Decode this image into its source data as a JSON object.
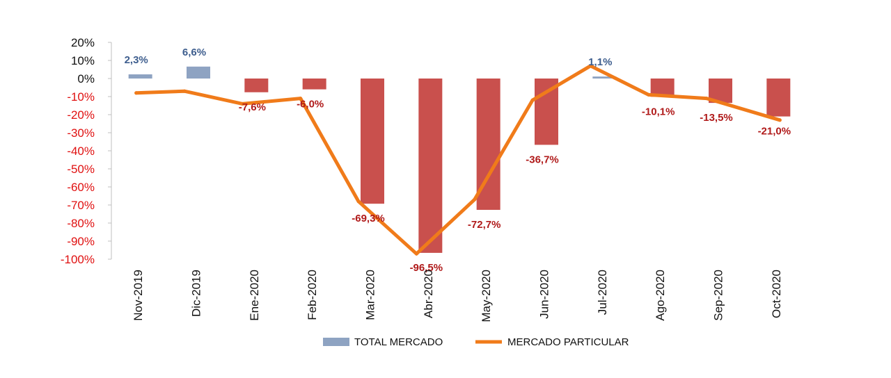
{
  "chart_data": {
    "type": "bar",
    "title": "",
    "xlabel": "",
    "ylabel": "",
    "ylim": [
      -100,
      20
    ],
    "y_ticks": [
      "20%",
      "10%",
      "0%",
      "-10%",
      "-20%",
      "-30%",
      "-40%",
      "-50%",
      "-60%",
      "-70%",
      "-80%",
      "-90%",
      "-100%"
    ],
    "categories": [
      "Nov-2019",
      "Dic-2019",
      "Ene-2020",
      "Feb-2020",
      "Mar-2020",
      "Abr-2020",
      "May-2020",
      "Jun-2020",
      "Jul-2020",
      "Ago-2020",
      "Sep-2020",
      "Oct-2020"
    ],
    "series": [
      {
        "name": "TOTAL MERCADO",
        "type": "bar",
        "values": [
          2.3,
          6.6,
          -7.6,
          -6.0,
          -69.3,
          -96.5,
          -72.7,
          -36.7,
          1.1,
          -10.1,
          -13.5,
          -21.0
        ],
        "labels": [
          "2,3%",
          "6,6%",
          "-7,6%",
          "-6,0%",
          "-69,3%",
          "-96,5%",
          "-72,7%",
          "-36,7%",
          "1,1%",
          "-10,1%",
          "-13,5%",
          "-21,0%"
        ]
      },
      {
        "name": "MERCADO PARTICULAR",
        "type": "line",
        "values": [
          -8,
          -7,
          -14,
          -11,
          -68,
          -97,
          -67,
          -12,
          7,
          -9,
          -11,
          -23
        ]
      }
    ],
    "legend_position": "bottom",
    "colors": {
      "bar_positive": "#8ea3c2",
      "bar_negative": "#c9504d",
      "line": "#f07b1a",
      "label_positive": "#3e5e8e",
      "label_negative": "#b01a1a",
      "tick_positive": "#111111",
      "tick_negative": "#e01010"
    }
  }
}
